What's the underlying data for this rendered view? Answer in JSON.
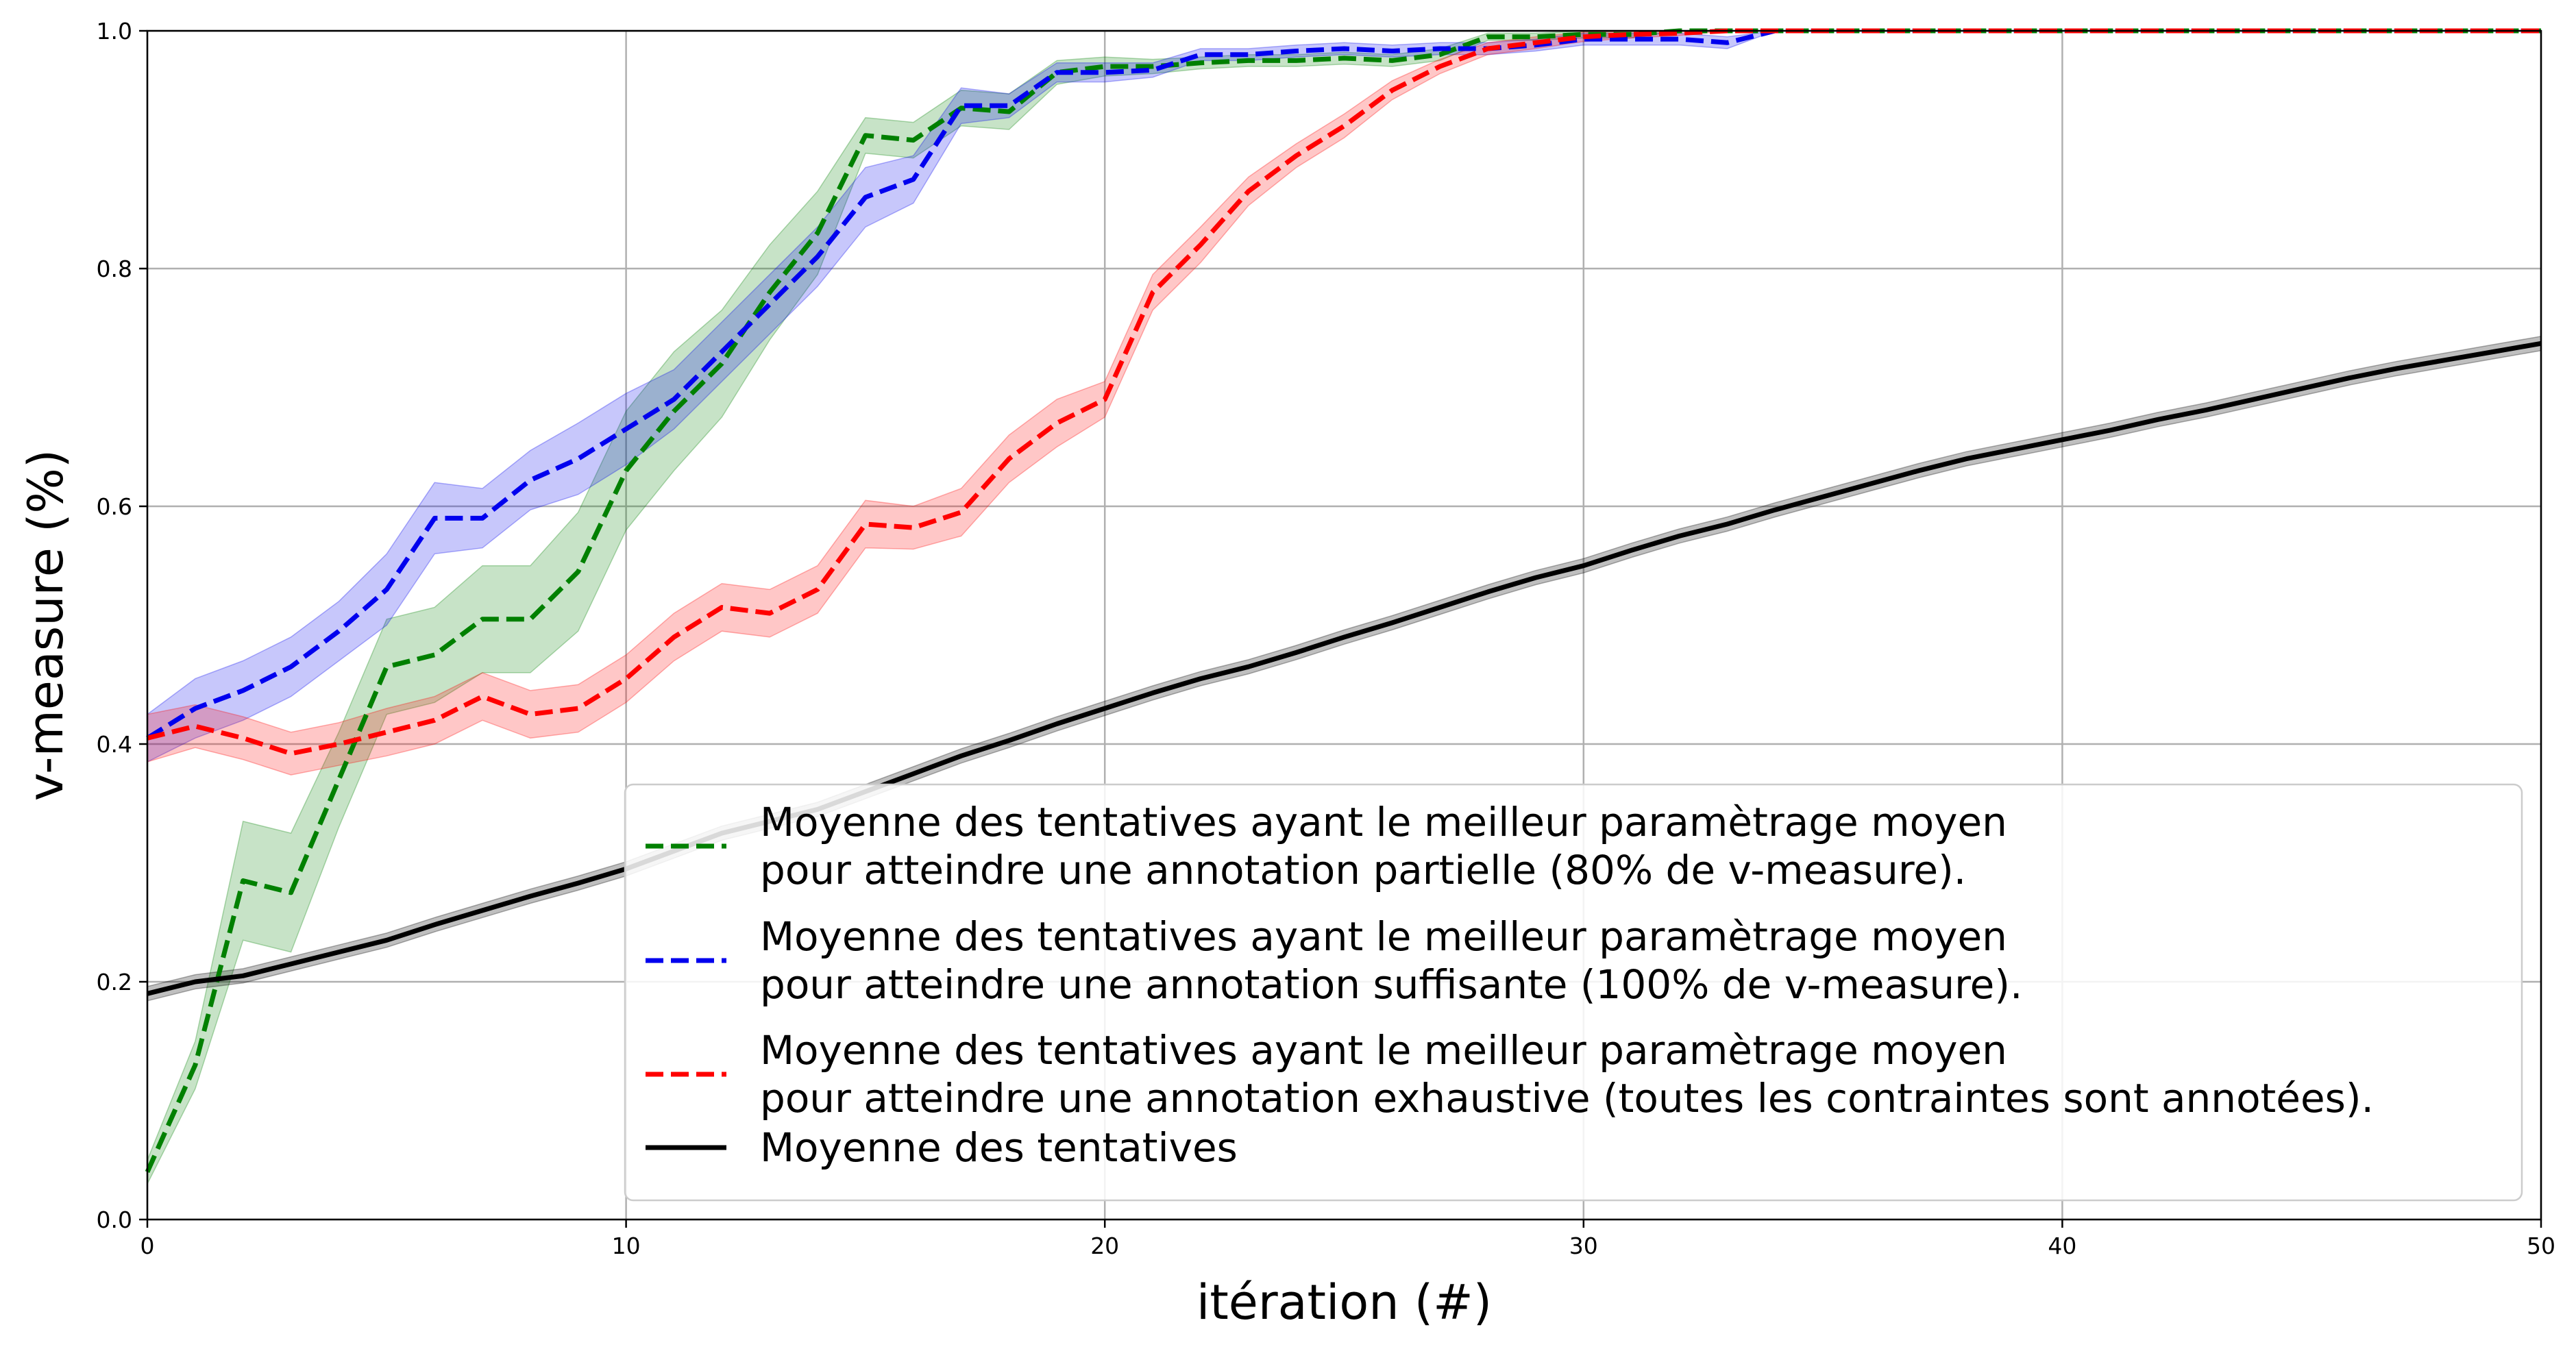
{
  "chart_data": {
    "type": "line",
    "title": "",
    "xlabel": "itération (#)",
    "ylabel": "v-measure (%)",
    "xlim": [
      0,
      50
    ],
    "ylim": [
      0.0,
      1.0
    ],
    "xticks": [
      "0",
      "10",
      "20",
      "30",
      "40",
      "50"
    ],
    "yticks": [
      "0.0",
      "0.2",
      "0.4",
      "0.6",
      "0.8",
      "1.0"
    ],
    "grid": true,
    "legend_position": "lower-right",
    "series": [
      {
        "name": "Moyenne des tentatives ayant le meilleur paramètrage moyen\npour atteindre une annotation partielle (80% de v-measure).",
        "color": "#008000",
        "style": "dashed",
        "x": [
          0,
          1,
          2,
          3,
          4,
          5,
          6,
          7,
          8,
          9,
          10,
          11,
          12,
          13,
          14,
          15,
          16,
          17,
          18,
          19,
          20,
          21,
          22,
          23,
          24,
          25,
          26,
          27,
          28,
          29,
          30,
          31,
          32,
          33,
          34,
          35,
          36,
          37,
          38,
          39,
          40,
          41,
          42,
          43,
          44,
          45,
          46,
          47,
          48,
          49,
          50
        ],
        "y": [
          0.04,
          0.13,
          0.285,
          0.275,
          0.37,
          0.465,
          0.475,
          0.505,
          0.505,
          0.545,
          0.63,
          0.68,
          0.72,
          0.78,
          0.83,
          0.912,
          0.908,
          0.935,
          0.932,
          0.965,
          0.97,
          0.97,
          0.973,
          0.975,
          0.975,
          0.977,
          0.975,
          0.98,
          0.995,
          0.995,
          0.997,
          0.997,
          1.0,
          1.0,
          1.0,
          1.0,
          1.0,
          1.0,
          1.0,
          1.0,
          1.0,
          1.0,
          1.0,
          1.0,
          1.0,
          1.0,
          1.0,
          1.0,
          1.0,
          1.0,
          1.0
        ],
        "band": [
          0.01,
          0.02,
          0.05,
          0.05,
          0.04,
          0.04,
          0.04,
          0.045,
          0.045,
          0.05,
          0.05,
          0.05,
          0.045,
          0.04,
          0.035,
          0.015,
          0.015,
          0.015,
          0.015,
          0.01,
          0.008,
          0.006,
          0.005,
          0.005,
          0.005,
          0.005,
          0.005,
          0.005,
          0.003,
          0.003,
          0.003,
          0.003,
          0.0,
          0.0,
          0.0,
          0.0,
          0.0,
          0.0,
          0.0,
          0.0,
          0.0,
          0.0,
          0.0,
          0.0,
          0.0,
          0.0,
          0.0,
          0.0,
          0.0,
          0.0,
          0.0
        ]
      },
      {
        "name": "Moyenne des tentatives ayant le meilleur paramètrage moyen\npour atteindre une annotation suffisante (100% de v-measure).",
        "color": "#0000ee",
        "style": "dashed",
        "x": [
          0,
          1,
          2,
          3,
          4,
          5,
          6,
          7,
          8,
          9,
          10,
          11,
          12,
          13,
          14,
          15,
          16,
          17,
          18,
          19,
          20,
          21,
          22,
          23,
          24,
          25,
          26,
          27,
          28,
          29,
          30,
          31,
          32,
          33,
          34,
          35,
          36,
          37,
          38,
          39,
          40,
          41,
          42,
          43,
          44,
          45,
          46,
          47,
          48,
          49,
          50
        ],
        "y": [
          0.405,
          0.43,
          0.445,
          0.465,
          0.495,
          0.53,
          0.59,
          0.59,
          0.622,
          0.64,
          0.665,
          0.69,
          0.73,
          0.77,
          0.81,
          0.86,
          0.875,
          0.937,
          0.937,
          0.965,
          0.965,
          0.967,
          0.98,
          0.98,
          0.983,
          0.985,
          0.983,
          0.985,
          0.985,
          0.988,
          0.993,
          0.993,
          0.993,
          0.99,
          1.0,
          1.0,
          1.0,
          1.0,
          1.0,
          1.0,
          1.0,
          1.0,
          1.0,
          1.0,
          1.0,
          1.0,
          1.0,
          1.0,
          1.0,
          1.0,
          1.0
        ],
        "band": [
          0.02,
          0.025,
          0.025,
          0.025,
          0.025,
          0.03,
          0.03,
          0.025,
          0.025,
          0.03,
          0.03,
          0.025,
          0.025,
          0.025,
          0.025,
          0.025,
          0.02,
          0.015,
          0.01,
          0.008,
          0.008,
          0.006,
          0.005,
          0.005,
          0.005,
          0.005,
          0.005,
          0.005,
          0.005,
          0.005,
          0.005,
          0.005,
          0.005,
          0.005,
          0.0,
          0.0,
          0.0,
          0.0,
          0.0,
          0.0,
          0.0,
          0.0,
          0.0,
          0.0,
          0.0,
          0.0,
          0.0,
          0.0,
          0.0,
          0.0,
          0.0
        ]
      },
      {
        "name": "Moyenne des tentatives ayant le meilleur paramètrage moyen\npour atteindre une annotation exhaustive (toutes les contraintes sont annotées).",
        "color": "#ff0000",
        "style": "dashed",
        "x": [
          0,
          1,
          2,
          3,
          4,
          5,
          6,
          7,
          8,
          9,
          10,
          11,
          12,
          13,
          14,
          15,
          16,
          17,
          18,
          19,
          20,
          21,
          22,
          23,
          24,
          25,
          26,
          27,
          28,
          29,
          30,
          31,
          32,
          33,
          34,
          35,
          36,
          37,
          38,
          39,
          40,
          41,
          42,
          43,
          44,
          45,
          46,
          47,
          48,
          49,
          50
        ],
        "y": [
          0.405,
          0.415,
          0.405,
          0.392,
          0.4,
          0.41,
          0.42,
          0.44,
          0.425,
          0.43,
          0.455,
          0.49,
          0.515,
          0.51,
          0.53,
          0.585,
          0.582,
          0.595,
          0.64,
          0.67,
          0.69,
          0.78,
          0.82,
          0.865,
          0.895,
          0.92,
          0.95,
          0.97,
          0.985,
          0.99,
          0.995,
          0.997,
          0.998,
          1.0,
          1.0,
          1.0,
          1.0,
          1.0,
          1.0,
          1.0,
          1.0,
          1.0,
          1.0,
          1.0,
          1.0,
          1.0,
          1.0,
          1.0,
          1.0,
          1.0,
          1.0
        ],
        "band": [
          0.02,
          0.018,
          0.018,
          0.018,
          0.018,
          0.02,
          0.02,
          0.02,
          0.02,
          0.02,
          0.02,
          0.02,
          0.02,
          0.02,
          0.02,
          0.02,
          0.018,
          0.02,
          0.02,
          0.02,
          0.015,
          0.015,
          0.015,
          0.012,
          0.01,
          0.01,
          0.008,
          0.006,
          0.005,
          0.005,
          0.004,
          0.003,
          0.002,
          0.0,
          0.0,
          0.0,
          0.0,
          0.0,
          0.0,
          0.0,
          0.0,
          0.0,
          0.0,
          0.0,
          0.0,
          0.0,
          0.0,
          0.0,
          0.0,
          0.0,
          0.0
        ]
      },
      {
        "name": "Moyenne des tentatives",
        "color": "#000000",
        "style": "solid",
        "x": [
          0,
          1,
          2,
          3,
          4,
          5,
          6,
          7,
          8,
          9,
          10,
          11,
          12,
          13,
          14,
          15,
          16,
          17,
          18,
          19,
          20,
          21,
          22,
          23,
          24,
          25,
          26,
          27,
          28,
          29,
          30,
          31,
          32,
          33,
          34,
          35,
          36,
          37,
          38,
          39,
          40,
          41,
          42,
          43,
          44,
          45,
          46,
          47,
          48,
          49,
          50
        ],
        "y": [
          0.19,
          0.2,
          0.205,
          0.215,
          0.225,
          0.235,
          0.248,
          0.26,
          0.272,
          0.283,
          0.295,
          0.31,
          0.325,
          0.335,
          0.345,
          0.36,
          0.375,
          0.39,
          0.403,
          0.417,
          0.43,
          0.443,
          0.455,
          0.465,
          0.477,
          0.49,
          0.502,
          0.515,
          0.528,
          0.54,
          0.55,
          0.563,
          0.575,
          0.585,
          0.597,
          0.608,
          0.619,
          0.63,
          0.64,
          0.648,
          0.656,
          0.664,
          0.673,
          0.681,
          0.69,
          0.699,
          0.708,
          0.716,
          0.723,
          0.73,
          0.737
        ],
        "band": [
          0.006,
          0.006,
          0.006,
          0.006,
          0.006,
          0.006,
          0.006,
          0.006,
          0.006,
          0.006,
          0.006,
          0.006,
          0.006,
          0.006,
          0.006,
          0.006,
          0.006,
          0.006,
          0.006,
          0.006,
          0.006,
          0.006,
          0.006,
          0.006,
          0.006,
          0.006,
          0.006,
          0.006,
          0.006,
          0.006,
          0.006,
          0.006,
          0.006,
          0.006,
          0.006,
          0.006,
          0.006,
          0.006,
          0.006,
          0.006,
          0.006,
          0.006,
          0.006,
          0.006,
          0.006,
          0.006,
          0.006,
          0.006,
          0.006,
          0.006,
          0.006
        ]
      }
    ]
  }
}
